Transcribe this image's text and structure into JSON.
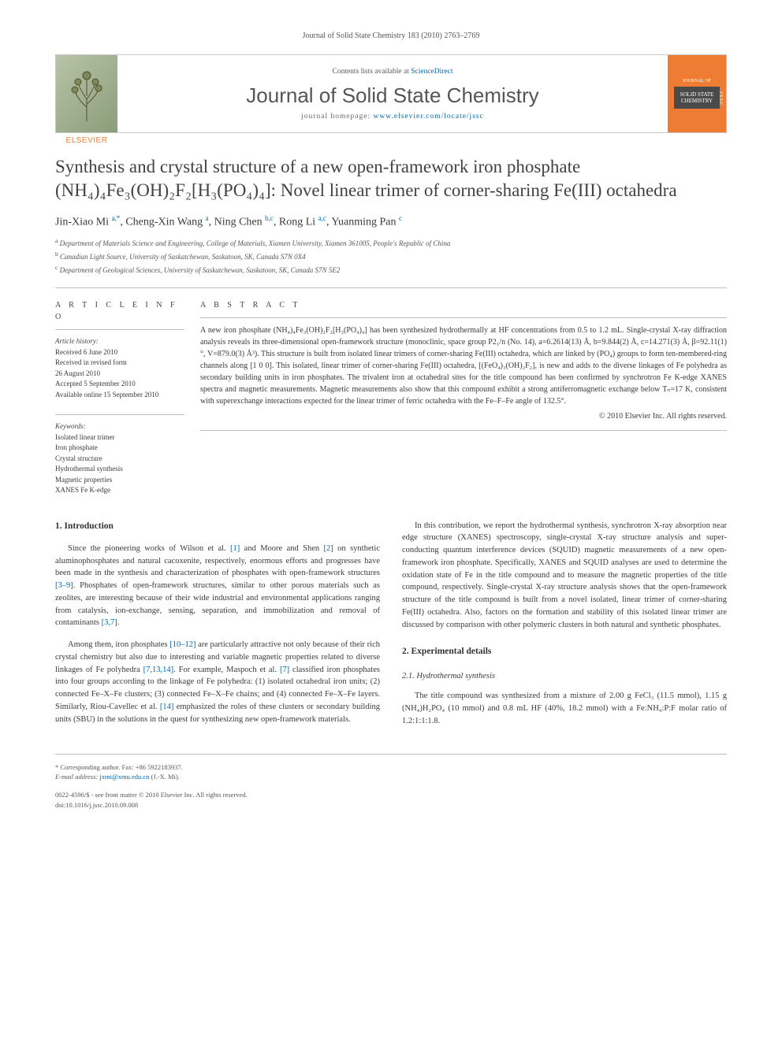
{
  "header": {
    "journal_ref": "Journal of Solid State Chemistry 183 (2010) 2763–2769",
    "contents_prefix": "Contents lists available at ",
    "contents_link": "ScienceDirect",
    "journal_title": "Journal of Solid State Chemistry",
    "homepage_prefix": "journal homepage: ",
    "homepage_link": "www.elsevier.com/locate/jssc",
    "publisher": "ELSEVIER",
    "cover_text": "SOLID STATE CHEMISTRY"
  },
  "title": "Synthesis and crystal structure of a new open-framework iron phosphate (NH₄)₄Fe₃(OH)₂F₂[H₃(PO₄)₄]: Novel linear trimer of corner-sharing Fe(III) octahedra",
  "authors_html": "Jin-Xiao Mi <sup>a,*</sup>, Cheng-Xin Wang <sup>a</sup>, Ning Chen <sup>b,c</sup>, Rong Li <sup>a,c</sup>, Yuanming Pan <sup>c</sup>",
  "affiliations": {
    "a": "Department of Materials Science and Engineering, College of Materials, Xiamen University, Xiamen 361005, People's Republic of China",
    "b": "Canadian Light Source, University of Saskatchewan, Saskatoon, SK, Canada S7N 0X4",
    "c": "Department of Geological Sciences, University of Saskatchewan, Saskatoon, SK, Canada S7N 5E2"
  },
  "article_info": {
    "heading": "A R T I C L E  I N F O",
    "history_label": "Article history:",
    "received": "Received 6 June 2010",
    "revised1": "Received in revised form",
    "revised2": "26 August 2010",
    "accepted": "Accepted 5 September 2010",
    "online": "Available online 15 September 2010",
    "keywords_label": "Keywords:",
    "keywords": [
      "Isolated linear trimer",
      "Iron phosphate",
      "Crystal structure",
      "Hydrothermal synthesis",
      "Magnetic properties",
      "XANES Fe K-edge"
    ]
  },
  "abstract": {
    "heading": "A B S T R A C T",
    "text": "A new iron phosphate (NH₄)₄Fe₃(OH)₂F₂[H₃(PO₄)₄] has been synthesized hydrothermally at HF concentrations from 0.5 to 1.2 mL. Single-crystal X-ray diffraction analysis reveals its three-dimensional open-framework structure (monoclinic, space group P2₁/n (No. 14), a=6.2614(13) Å, b=9.844(2) Å, c=14.271(3) Å, β=92.11(1)°, V=879.0(3) Å³). This structure is built from isolated linear trimers of corner-sharing Fe(III) octahedra, which are linked by (PO₄) groups to form ten-membered-ring channels along [1 0 0]. This isolated, linear trimer of corner-sharing Fe(III) octahedra, [(FeO₄)₃(OH)₂F₂], is new and adds to the diverse linkages of Fe polyhedra as secondary building units in iron phosphates. The trivalent iron at octahedral sites for the title compound has been confirmed by synchrotron Fe K-edge XANES spectra and magnetic measurements. Magnetic measurements also show that this compound exhibit a strong antiferromagnetic exchange below Tₙ=17 K, consistent with superexchange interactions expected for the linear trimer of ferric octahedra with the Fe–F–Fe angle of 132.5°.",
    "copyright": "© 2010 Elsevier Inc. All rights reserved."
  },
  "sections": {
    "s1_heading": "1. Introduction",
    "s1_p1_a": "Since the pioneering works of Wilson et al. ",
    "s1_p1_ref1": "[1]",
    "s1_p1_b": " and Moore and Shen ",
    "s1_p1_ref2": "[2]",
    "s1_p1_c": " on synthetic aluminophosphates and natural cacoxenite, respectively, enormous efforts and progresses have been made in the synthesis and characterization of phosphates with open-framework structures ",
    "s1_p1_ref3": "[3–9]",
    "s1_p1_d": ". Phosphates of open-framework structures, similar to other porous materials such as zeolites, are interesting because of their wide industrial and environmental applications ranging from catalysis, ion-exchange, sensing, separation, and immobilization and removal of contaminants ",
    "s1_p1_ref4": "[3,7]",
    "s1_p1_e": ".",
    "s1_p2_a": "Among them, iron phosphates ",
    "s1_p2_ref1": "[10–12]",
    "s1_p2_b": " are particularly attractive not only because of their rich crystal chemistry but also due to interesting and variable magnetic properties related to diverse linkages of Fe polyhedra ",
    "s1_p2_ref2": "[7,13,14]",
    "s1_p2_c": ". For example, Maspoch et al. ",
    "s1_p2_ref3": "[7]",
    "s1_p2_d": " classified iron phosphates into four groups according to the linkage of Fe polyhedra: (1) isolated octahedral iron units; (2) connected Fe–X–Fe clusters; (3) connected Fe–X–Fe chains; and (4) connected Fe–X–Fe layers. Similarly, Riou-Cavellec et al. ",
    "s1_p2_ref4": "[14]",
    "s1_p2_e": " emphasized the roles of these clusters or secondary building units (SBU) in the solutions in the quest for synthesizing new open-framework materials.",
    "s1_p3": "In this contribution, we report the hydrothermal synthesis, synchrotron X-ray absorption near edge structure (XANES) spectroscopy, single-crystal X-ray structure analysis and super-conducting quantum interference devices (SQUID) magnetic measurements of a new open-framework iron phosphate. Specifically, XANES and SQUID analyses are used to determine the oxidation state of Fe in the title compound and to measure the magnetic properties of the title compound, respectively. Single-crystal X-ray structure analysis shows that the open-framework structure of the title compound is built from a novel isolated, linear trimer of corner-sharing Fe(III) octahedra. Also, factors on the formation and stability of this isolated linear trimer are discussed by comparison with other polymeric clusters in both natural and synthetic phosphates.",
    "s2_heading": "2. Experimental details",
    "s21_heading": "2.1. Hydrothermal synthesis",
    "s21_p1": "The title compound was synthesized from a mixture of 2.00 g FeCl₃ (11.5 mmol), 1.15 g (NH₄)H₂PO₄ (10 mmol) and 0.8 mL HF (40%, 18.2 mmol) with a Fe:NH₄:P:F molar ratio of 1.2:1:1:1.8."
  },
  "footer": {
    "corr_label": "* Corresponding author. Fax: +86 5922183937.",
    "email_label": "E-mail address: ",
    "email": "jxmi@xmu.edu.cn",
    "email_suffix": " (J.-X. Mi).",
    "issn": "0022-4596/$ - see front matter © 2010 Elsevier Inc. All rights reserved.",
    "doi": "doi:10.1016/j.jssc.2010.09.008"
  },
  "colors": {
    "link": "#0066b3",
    "elsevier_orange": "#ee7d33",
    "text": "#3a3a3a",
    "rule": "#bcbcbc"
  }
}
